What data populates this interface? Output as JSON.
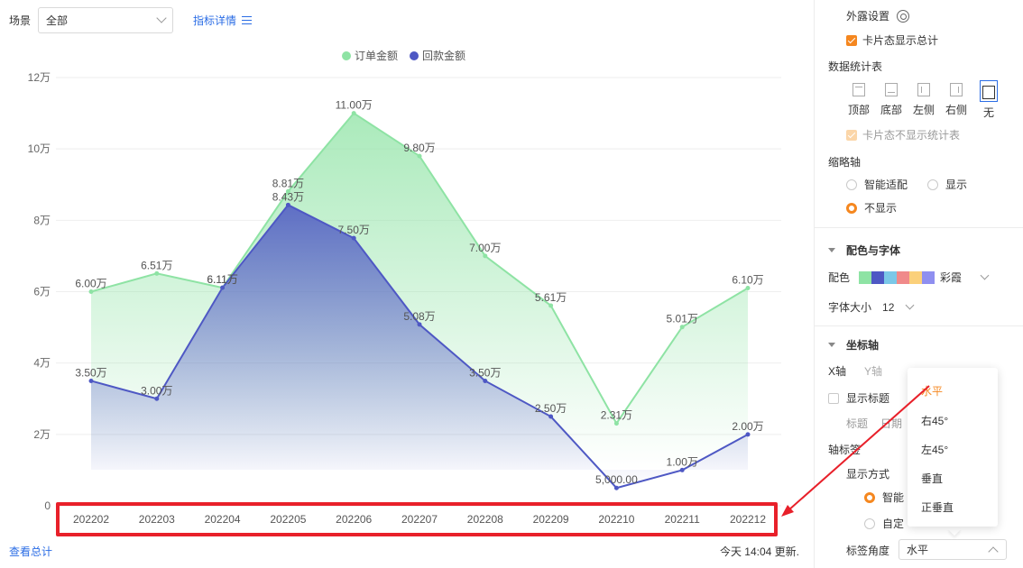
{
  "toolbar": {
    "scene_label": "场景",
    "scene_value": "全部",
    "detail_link": "指标详情"
  },
  "chart_data": {
    "type": "line",
    "categories": [
      "202202",
      "202203",
      "202204",
      "202205",
      "202206",
      "202207",
      "202208",
      "202209",
      "202210",
      "202211",
      "202212"
    ],
    "series": [
      {
        "name": "订单金额",
        "color": "#8ee3a4",
        "values": [
          60000,
          65100,
          61100,
          88100,
          110000,
          98000,
          70000,
          56100,
          23100,
          50100,
          61000
        ],
        "labels": [
          "6.00万",
          "6.51万",
          "6.11万",
          "8.81万",
          "11.00万",
          "9.80万",
          "7.00万",
          "5.61万",
          "2.31万",
          "5.01万",
          "6.10万"
        ]
      },
      {
        "name": "回款金额",
        "color": "#4e58c4",
        "values": [
          35000,
          30000,
          61100,
          84300,
          75000,
          50800,
          35000,
          25000,
          5000,
          10000,
          20000
        ],
        "labels": [
          "3.50万",
          "3.00万",
          "6.11万",
          "8.43万",
          "7.50万",
          "5.08万",
          "3.50万",
          "2.50万",
          "5,000.00",
          "1.00万",
          "2.00万"
        ]
      }
    ],
    "y_ticks": [
      "0",
      "2万",
      "4万",
      "6万",
      "8万",
      "10万",
      "12万"
    ],
    "ylim": [
      0,
      120000
    ],
    "legend": "top-center",
    "grid": true
  },
  "footer": {
    "view_total": "查看总计",
    "updated": "今天 14:04 更新."
  },
  "panel": {
    "exposure_settings": "外露设置",
    "card_show_total": "卡片态显示总计",
    "data_table": "数据统计表",
    "table_positions": [
      "顶部",
      "底部",
      "左侧",
      "右侧",
      "无"
    ],
    "card_hide_table": "卡片态不显示统计表",
    "thumbnail_axis": "缩略轴",
    "smart_fit": "智能适配",
    "show": "显示",
    "hide": "不显示",
    "color_font": "配色与字体",
    "color_label": "配色",
    "palette_name": "彩霞",
    "palette": [
      "#8ee3a4",
      "#4e58c4",
      "#7bc8e8",
      "#f08a8a",
      "#fbd07a",
      "#8f8ff0"
    ],
    "font_size_label": "字体大小",
    "font_size_value": "12",
    "axis_section": "坐标轴",
    "x_axis_tab": "X轴",
    "y_axis_tab": "Y轴",
    "show_title": "显示标题",
    "title_label": "标题",
    "title_value_fragment": "日期",
    "axis_label_head": "轴标签",
    "display_mode": "显示方式",
    "smart_fragment": "智能",
    "custom_fragment": "自定",
    "label_angle": "标签角度",
    "label_angle_value": "水平"
  },
  "angle_options": [
    "水平",
    "右45°",
    "左45°",
    "垂直",
    "正垂直"
  ]
}
